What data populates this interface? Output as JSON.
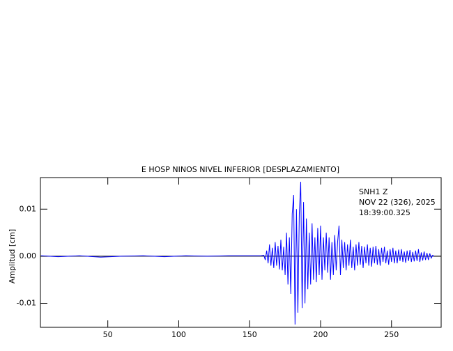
{
  "chart_data": {
    "type": "line",
    "title": "E HOSP NINOS NIVEL INFERIOR [DESPLAZAMIENTO]",
    "ylabel": "Amplitud [cm]",
    "annotations": [
      "SNH1  Z",
      "NOV 22 (326), 2025",
      "18:39:00.325"
    ],
    "xlim": [
      2.5,
      285
    ],
    "ylim": [
      -0.0151,
      0.0167
    ],
    "xticks": [
      50,
      100,
      150,
      200,
      250
    ],
    "yticks": [
      -0.01,
      {
        "value": 0,
        "label": "0.00"
      },
      0.01
    ],
    "series": [
      {
        "color": "#0000ff",
        "x": [
          3,
          15,
          30,
          45,
          60,
          75,
          90,
          105,
          120,
          135,
          150,
          158,
          160,
          161,
          162,
          163,
          164,
          165,
          166,
          167,
          168,
          169,
          170,
          171,
          172,
          173,
          174,
          175,
          176,
          177,
          178,
          179,
          180,
          181,
          182,
          183,
          184,
          185,
          186,
          187,
          188,
          189,
          190,
          191,
          192,
          193,
          194,
          195,
          196,
          197,
          198,
          199,
          200,
          201,
          202,
          203,
          204,
          205,
          206,
          207,
          208,
          209,
          210,
          211,
          212,
          213,
          214,
          215,
          216,
          217,
          218,
          219,
          220,
          221,
          222,
          223,
          224,
          225,
          226,
          227,
          228,
          229,
          230,
          231,
          232,
          233,
          234,
          235,
          236,
          237,
          238,
          239,
          240,
          241,
          242,
          243,
          244,
          245,
          246,
          247,
          248,
          249,
          250,
          251,
          252,
          253,
          254,
          255,
          256,
          257,
          258,
          259,
          260,
          261,
          262,
          263,
          264,
          265,
          266,
          267,
          268,
          269,
          270,
          271,
          272,
          273,
          274,
          275,
          276,
          277,
          278,
          279,
          280
        ],
        "values": [
          0.0001,
          -0.0001,
          0.0001,
          -0.0002,
          0,
          0.0001,
          -0.0001,
          0.0001,
          0,
          0.0001,
          0.0001,
          0.0001,
          0.0002,
          -0.0008,
          0.0012,
          -0.0015,
          0.0025,
          -0.002,
          0.0018,
          -0.0025,
          0.003,
          -0.002,
          0.0022,
          -0.0028,
          0.0035,
          -0.003,
          0.002,
          -0.004,
          0.005,
          -0.006,
          0.004,
          -0.008,
          0.009,
          0.013,
          -0.0145,
          0.01,
          -0.012,
          0.009,
          0.0158,
          -0.011,
          0.0115,
          -0.01,
          0.008,
          -0.007,
          0.005,
          -0.006,
          0.007,
          -0.005,
          0.004,
          -0.0055,
          0.006,
          -0.004,
          0.0065,
          -0.005,
          0.004,
          -0.003,
          0.005,
          -0.0035,
          0.004,
          -0.005,
          0.003,
          -0.004,
          0.0045,
          -0.003,
          0.003,
          0.0065,
          -0.004,
          0.0035,
          -0.0025,
          0.003,
          -0.003,
          0.0025,
          -0.002,
          0.0035,
          -0.0025,
          0.002,
          -0.003,
          0.0025,
          -0.002,
          0.003,
          -0.0018,
          0.0022,
          -0.0025,
          0.002,
          -0.0015,
          0.0025,
          -0.002,
          0.0018,
          -0.0022,
          0.002,
          -0.0015,
          0.0022,
          -0.0018,
          0.0015,
          -0.002,
          0.0018,
          -0.0012,
          0.002,
          -0.0015,
          0.0012,
          -0.0018,
          0.0015,
          -0.0012,
          0.0018,
          -0.0015,
          0.0012,
          -0.0015,
          0.0014,
          -0.001,
          0.0015,
          -0.0012,
          0.001,
          -0.0014,
          0.0012,
          -0.001,
          0.0013,
          -0.0012,
          0.0009,
          -0.0011,
          0.0012,
          -0.001,
          0.0015,
          -0.0012,
          0.0008,
          -0.0009,
          0.001,
          -0.0008,
          0.0007,
          -0.0008,
          0.0006,
          -0.0004,
          0.0002,
          0
        ]
      }
    ]
  }
}
